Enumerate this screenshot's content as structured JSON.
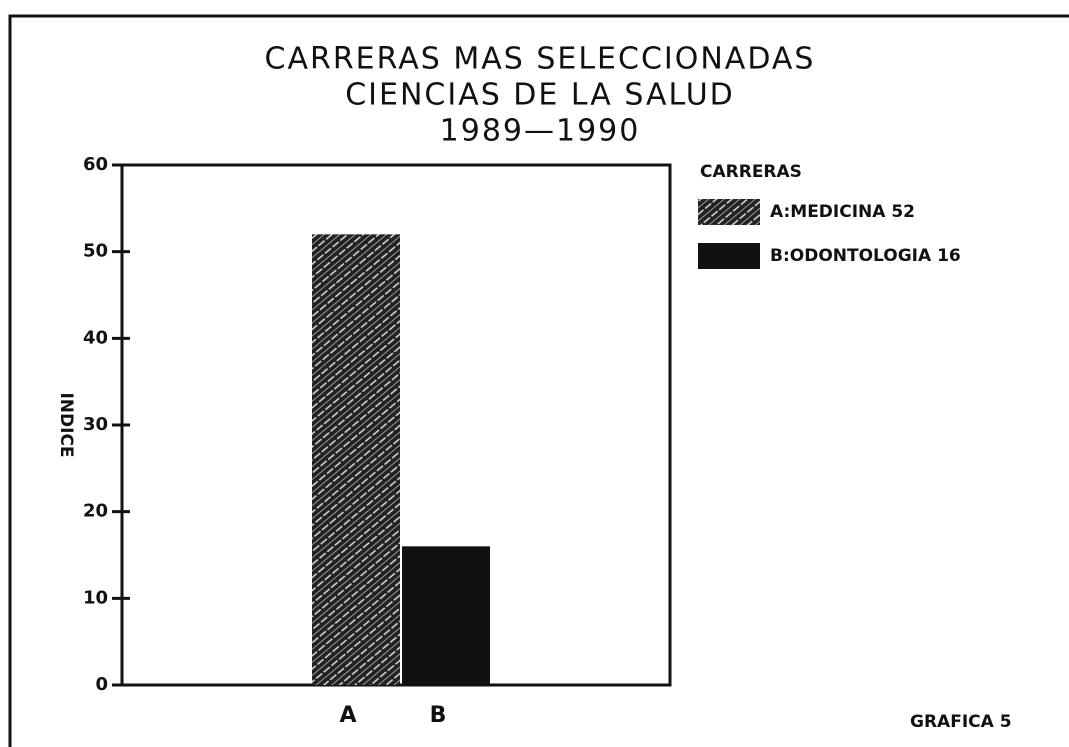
{
  "chart_data": {
    "type": "bar",
    "title": [
      "CARRERAS MAS SELECCIONADAS",
      "CIENCIAS DE LA SALUD",
      "1989—1990"
    ],
    "ylabel": "INDICE",
    "categories": [
      "A",
      "B"
    ],
    "values": [
      52,
      16
    ],
    "fills": [
      "hatch",
      "solid"
    ],
    "color": "#111111",
    "legend_title": "CARRERAS",
    "legend": [
      "A:MEDICINA 52",
      "B:ODONTOLOGIA 16"
    ],
    "ylim": [
      0,
      60
    ],
    "yticks": [
      0,
      10,
      20,
      30,
      40,
      50,
      60
    ],
    "footer": "GRAFICA 5"
  }
}
